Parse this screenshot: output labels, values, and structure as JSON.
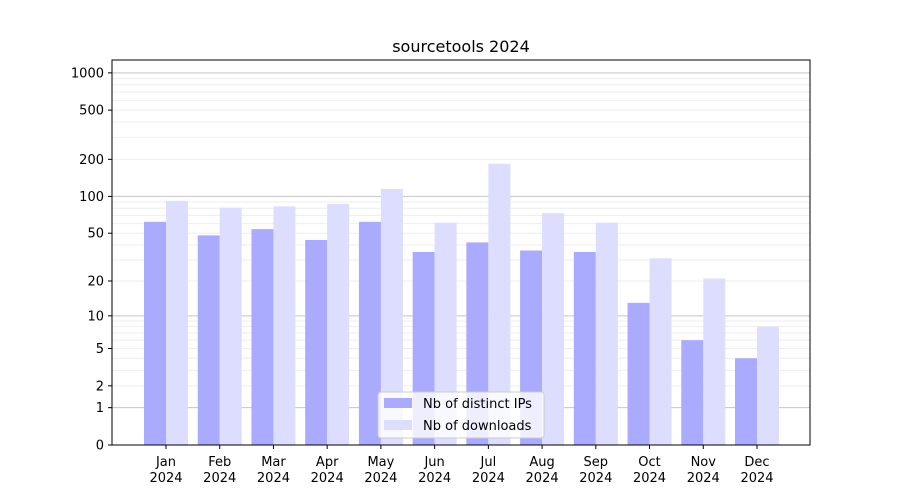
{
  "chart_data": {
    "type": "bar",
    "title": "sourcetools 2024",
    "xlabel": "",
    "ylabel": "",
    "yscale": "symlog",
    "ylim": [
      0,
      1270
    ],
    "grid": true,
    "legend_position": "lower center",
    "categories": [
      [
        "Jan",
        "2024"
      ],
      [
        "Feb",
        "2024"
      ],
      [
        "Mar",
        "2024"
      ],
      [
        "Apr",
        "2024"
      ],
      [
        "May",
        "2024"
      ],
      [
        "Jun",
        "2024"
      ],
      [
        "Jul",
        "2024"
      ],
      [
        "Aug",
        "2024"
      ],
      [
        "Sep",
        "2024"
      ],
      [
        "Oct",
        "2024"
      ],
      [
        "Nov",
        "2024"
      ],
      [
        "Dec",
        "2024"
      ]
    ],
    "yticks": [
      0,
      1,
      2,
      5,
      10,
      20,
      50,
      100,
      200,
      500,
      1000
    ],
    "ytick_labels": [
      "0",
      "1",
      "2",
      "5",
      "10",
      "20",
      "50",
      "100",
      "200",
      "500",
      "1000"
    ],
    "series": [
      {
        "name": "Nb of distinct IPs",
        "color": "#aaaaff",
        "values": [
          62,
          48,
          54,
          44,
          62,
          35,
          42,
          36,
          35,
          13,
          6,
          4
        ]
      },
      {
        "name": "Nb of downloads",
        "color": "#ddddff",
        "values": [
          92,
          81,
          83,
          87,
          115,
          61,
          184,
          73,
          61,
          31,
          21,
          8
        ]
      }
    ]
  }
}
